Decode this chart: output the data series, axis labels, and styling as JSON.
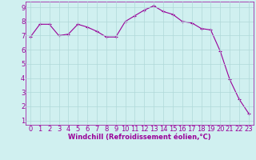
{
  "x": [
    0,
    1,
    2,
    3,
    4,
    5,
    6,
    7,
    8,
    9,
    10,
    11,
    12,
    13,
    14,
    15,
    16,
    17,
    18,
    19,
    20,
    21,
    22,
    23
  ],
  "y": [
    6.9,
    7.8,
    7.8,
    7.0,
    7.1,
    7.8,
    7.6,
    7.3,
    6.9,
    6.9,
    8.0,
    8.4,
    8.8,
    9.1,
    8.7,
    8.5,
    8.0,
    7.9,
    7.5,
    7.4,
    5.9,
    3.9,
    2.5,
    1.5
  ],
  "line_color": "#990099",
  "marker": "+",
  "marker_size": 3,
  "bg_color": "#d0f0f0",
  "grid_color": "#b0d8d8",
  "xlabel": "Windchill (Refroidissement éolien,°C)",
  "xlabel_color": "#990099",
  "xlabel_fontsize": 6.0,
  "tick_color": "#990099",
  "tick_fontsize": 6.0,
  "ylim_min": 0.7,
  "ylim_max": 9.4,
  "xlim_min": -0.5,
  "xlim_max": 23.5,
  "yticks": [
    1,
    2,
    3,
    4,
    5,
    6,
    7,
    8,
    9
  ],
  "xticks": [
    0,
    1,
    2,
    3,
    4,
    5,
    6,
    7,
    8,
    9,
    10,
    11,
    12,
    13,
    14,
    15,
    16,
    17,
    18,
    19,
    20,
    21,
    22,
    23
  ]
}
